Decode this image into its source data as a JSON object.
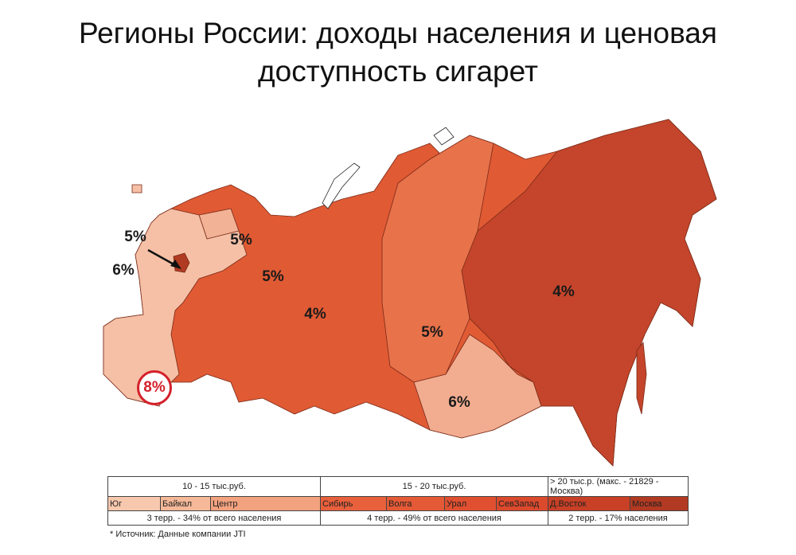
{
  "title": "Регионы России: доходы населения и ценовая доступность сигарет",
  "map": {
    "labels": {
      "moscow": "5%",
      "center": "6%",
      "northwest": "5%",
      "volga": "5%",
      "ural": "4%",
      "siberia": "5%",
      "far_east": "4%",
      "baikal": "6%",
      "south": "8%"
    },
    "colors": {
      "light": "#f5c0a6",
      "baikal": "#f2ad90",
      "siberia": "#e8724a",
      "mid": "#e05a34",
      "far_east": "#c4452b",
      "moscow": "#b03a22",
      "highlight": "#d4202a"
    }
  },
  "legend": {
    "groups": [
      {
        "label": "10 - 15 тыс.руб.",
        "summary": "3 терр. - 34% от всего населения"
      },
      {
        "label": "15 - 20 тыс.руб.",
        "summary": "4 терр. - 49% от всего населения"
      },
      {
        "label": "> 20 тыс.р. (макс. - 21829 - Москва)",
        "summary": "2 терр. - 17% населения"
      }
    ],
    "regions": [
      {
        "name": "Юг",
        "color": "#f8c8ae"
      },
      {
        "name": "Байкал",
        "color": "#f5b898"
      },
      {
        "name": "Центр",
        "color": "#f2a27e"
      },
      {
        "name": "Сибирь",
        "color": "#e8603c"
      },
      {
        "name": "Волга",
        "color": "#e55a36"
      },
      {
        "name": "Урал",
        "color": "#e05030"
      },
      {
        "name": "СевЗапад",
        "color": "#db4a2c"
      },
      {
        "name": "Д.Восток",
        "color": "#c84026"
      },
      {
        "name": "Москва",
        "color": "#b33a22"
      }
    ]
  },
  "source": "* Источник: Данные компании JTI"
}
